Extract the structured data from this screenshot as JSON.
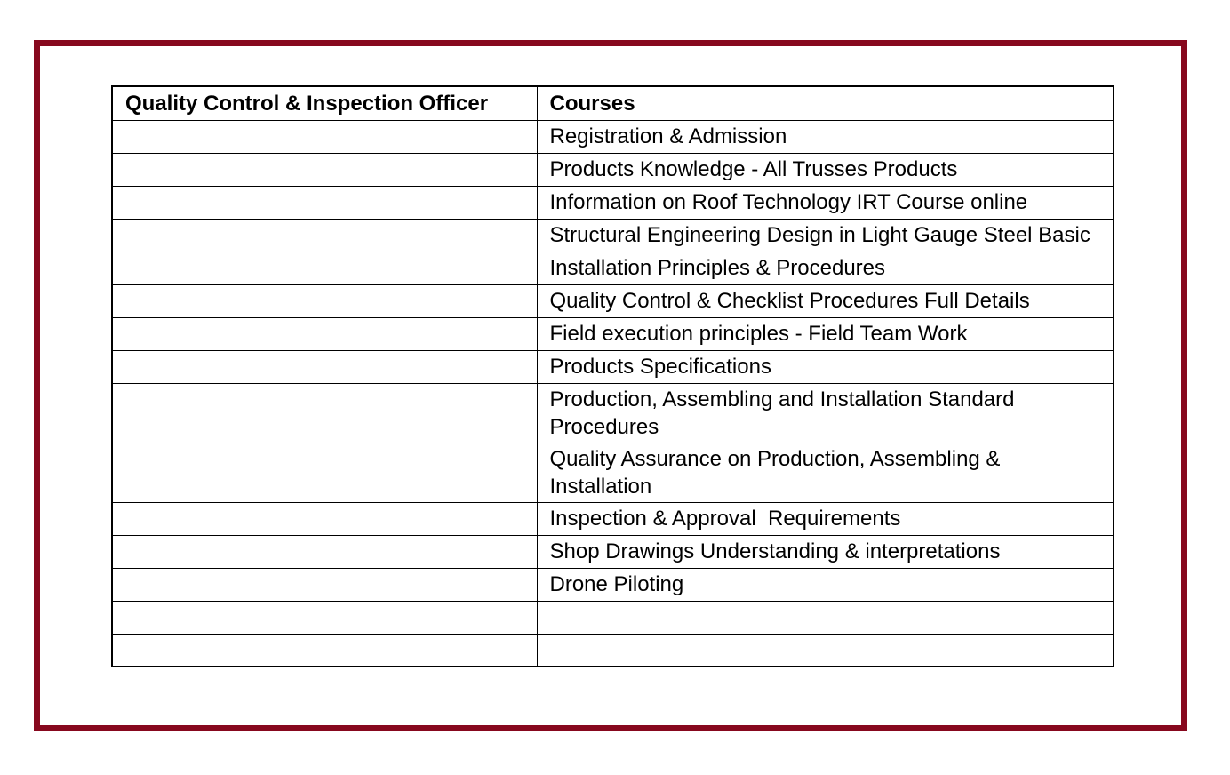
{
  "frame": {
    "border_color": "#87081E"
  },
  "table": {
    "headers": [
      "Quality Control & Inspection Officer",
      "Courses"
    ],
    "rows": [
      "Registration & Admission",
      "Products Knowledge - All Trusses Products",
      "Information on Roof Technology IRT Course online",
      "Structural Engineering Design in Light Gauge Steel Basic",
      "Installation Principles & Procedures",
      "Quality Control & Checklist Procedures Full Details",
      "Field execution principles - Field Team Work",
      "Products Specifications",
      "Production, Assembling and Installation Standard\nProcedures",
      "Quality Assurance on Production, Assembling &\nInstallation",
      "Inspection & Approval  Requirements",
      "Shop Drawings Understanding & interpretations",
      "Drone Piloting",
      "",
      ""
    ]
  }
}
